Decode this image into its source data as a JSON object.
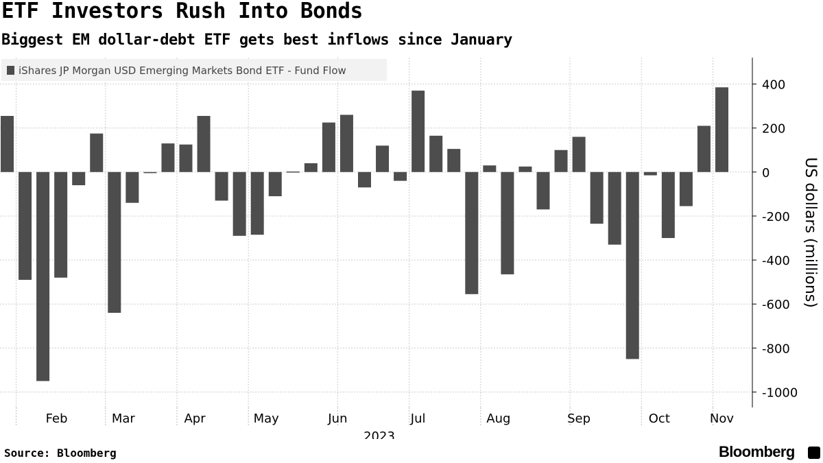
{
  "title": "ETF Investors Rush Into Bonds",
  "subtitle": "Biggest EM dollar-debt ETF gets best inflows since January",
  "source": "Source: Bloomberg",
  "logo": "Bloomberg",
  "chart_data": {
    "type": "bar",
    "legend": "iShares JP Morgan USD Emerging Markets Bond ETF - Fund Flow",
    "legend_position": "top-left",
    "ylabel": "US dollars (millions)",
    "ylim": [
      -1070,
      520
    ],
    "yticks": [
      400,
      200,
      0,
      -200,
      -400,
      -600,
      -800,
      -1000
    ],
    "ytick_labels": [
      "400",
      "200",
      "0",
      "-200",
      "-400",
      "-600",
      "-800",
      "-1000"
    ],
    "x_year_label": "2023",
    "month_labels": [
      "Feb",
      "Mar",
      "Apr",
      "May",
      "Jun",
      "Jul",
      "Aug",
      "Sep",
      "Oct",
      "Nov"
    ],
    "month_label_after_bar": [
      1,
      5,
      10,
      14,
      18,
      23,
      27,
      32,
      36,
      40
    ],
    "grid": true,
    "bar_color": "#4d4d4d",
    "series": [
      {
        "name": "iShares JP Morgan USD Emerging Markets Bond ETF - Fund Flow",
        "values": [
          255,
          -490,
          -950,
          -480,
          -60,
          175,
          -640,
          -140,
          -5,
          130,
          125,
          255,
          -130,
          -290,
          -285,
          -110,
          -3,
          40,
          225,
          260,
          -70,
          120,
          -40,
          370,
          165,
          105,
          -555,
          30,
          -465,
          25,
          -170,
          100,
          160,
          -235,
          -330,
          -850,
          -15,
          -300,
          -155,
          210,
          385
        ]
      }
    ]
  }
}
